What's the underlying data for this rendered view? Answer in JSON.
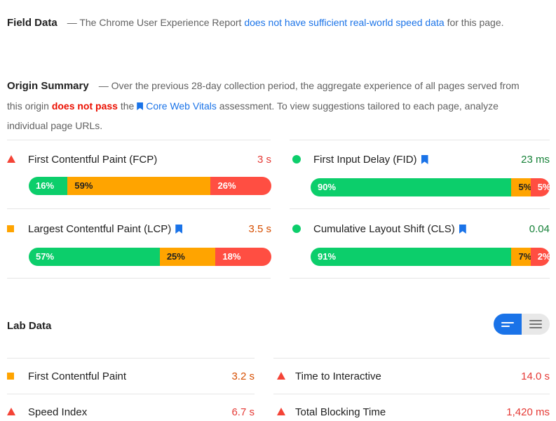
{
  "field_data": {
    "heading": "Field Data",
    "text_before": "— The Chrome User Experience Report ",
    "link": "does not have sufficient real-world speed data",
    "text_after": " for this page."
  },
  "origin_summary": {
    "heading": "Origin Summary",
    "text_before": "— Over the previous 28-day collection period, the aggregate experience of all pages served from this origin ",
    "fail": "does not pass",
    "text_mid": " the ",
    "link": "Core Web Vitals",
    "text_after": " assessment. To view suggestions tailored to each page, analyze individual page URLs."
  },
  "metrics": [
    {
      "name": "First Contentful Paint (FCP)",
      "value": "3 s",
      "status": "fail",
      "core": false,
      "dist": {
        "good": "16%",
        "avg": "59%",
        "poor": "26%"
      },
      "frac": [
        0.16,
        0.59,
        0.25
      ]
    },
    {
      "name": "First Input Delay (FID)",
      "value": "23 ms",
      "status": "pass",
      "core": true,
      "dist": {
        "good": "90%",
        "avg": "5%",
        "poor": "5%"
      },
      "frac": [
        0.84,
        0.08,
        0.08
      ]
    },
    {
      "name": "Largest Contentful Paint (LCP)",
      "value": "3.5 s",
      "status": "average",
      "core": true,
      "dist": {
        "good": "57%",
        "avg": "25%",
        "poor": "18%"
      },
      "frac": [
        0.54,
        0.23,
        0.23
      ]
    },
    {
      "name": "Cumulative Layout Shift (CLS)",
      "value": "0.04",
      "status": "pass",
      "core": true,
      "dist": {
        "good": "91%",
        "avg": "7%",
        "poor": "2%"
      },
      "frac": [
        0.84,
        0.08,
        0.08
      ]
    }
  ],
  "lab_data": {
    "heading": "Lab Data",
    "items": [
      {
        "name": "First Contentful Paint",
        "value": "3.2 s",
        "status": "average"
      },
      {
        "name": "Time to Interactive",
        "value": "14.0 s",
        "status": "fail"
      },
      {
        "name": "Speed Index",
        "value": "6.7 s",
        "status": "fail"
      },
      {
        "name": "Total Blocking Time",
        "value": "1,420 ms",
        "status": "fail"
      }
    ]
  },
  "colors": {
    "good": "#0cce6b",
    "average": "#ffa400",
    "poor": "#ff4e42",
    "link": "#1a73e8",
    "fail_text": "#eb0f00"
  },
  "icons": {
    "fail": "red-triangle-icon",
    "average": "orange-square-icon",
    "pass": "green-circle-icon",
    "core": "bookmark-icon"
  }
}
